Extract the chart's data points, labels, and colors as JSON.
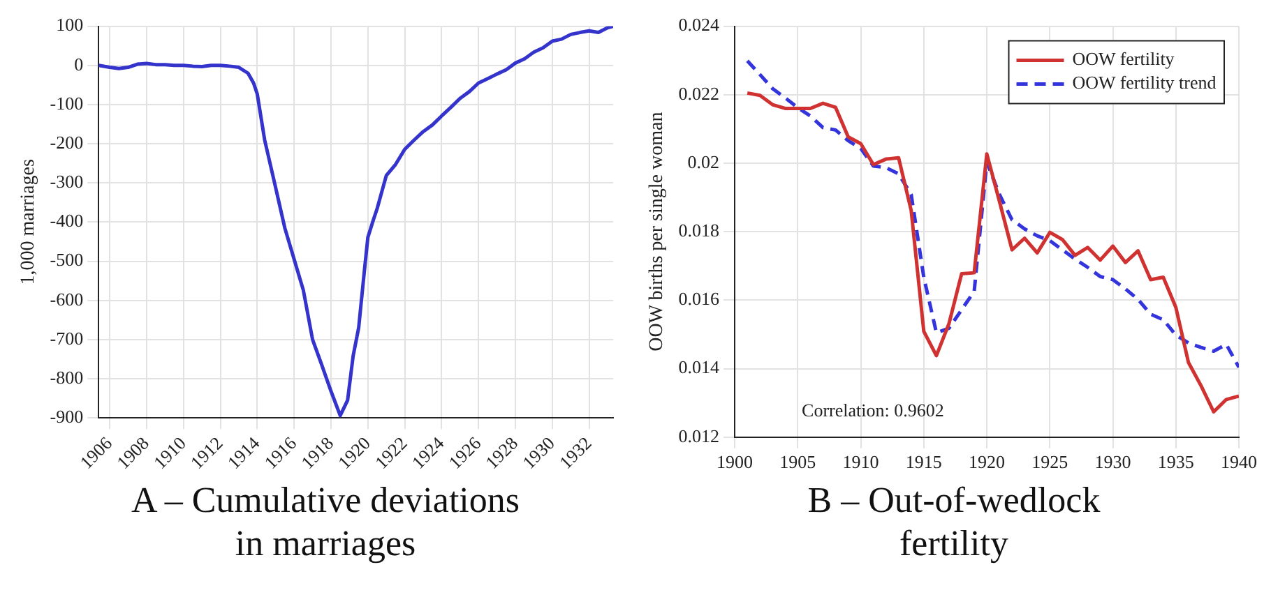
{
  "chart_data": [
    {
      "type": "line",
      "title": "A – Cumulative deviations in marriages",
      "ylabel": "1,000 marriages",
      "color": "#3434cc",
      "grid": true,
      "x": [
        1905.4,
        1906,
        1906.5,
        1907,
        1907.5,
        1908,
        1908.5,
        1909,
        1909.5,
        1910,
        1910.5,
        1911,
        1911.5,
        1912,
        1912.5,
        1913,
        1913.5,
        1913.8,
        1914,
        1914.4,
        1914.9,
        1915.5,
        1916,
        1916.5,
        1917,
        1917.5,
        1918,
        1918.5,
        1918.9,
        1919.2,
        1919.5,
        1919.8,
        1920,
        1920.3,
        1920.5,
        1920.8,
        1921,
        1921.5,
        1922,
        1922.5,
        1923,
        1923.5,
        1924,
        1924.5,
        1925,
        1925.5,
        1926,
        1926.5,
        1927,
        1927.5,
        1928,
        1928.5,
        1929,
        1929.5,
        1930,
        1930.5,
        1931,
        1931.5,
        1932,
        1932.5,
        1933,
        1933.3
      ],
      "values": [
        0,
        -5,
        -8,
        -5,
        3,
        5,
        2,
        2,
        0,
        0,
        -2,
        -3,
        0,
        0,
        -2,
        -5,
        -20,
        -45,
        -73,
        -190,
        -292,
        -416,
        -495,
        -574,
        -700,
        -765,
        -832,
        -894,
        -855,
        -742,
        -670,
        -529,
        -439,
        -394,
        -366,
        -315,
        -281,
        -253,
        -214,
        -191,
        -169,
        -152,
        -129,
        -107,
        -84,
        -67,
        -45,
        -34,
        -22,
        -11,
        6,
        17,
        34,
        45,
        62,
        67,
        79,
        84,
        88,
        84,
        96,
        100
      ],
      "xlim": [
        1905.4,
        1933.3
      ],
      "ylim": [
        -900,
        100
      ],
      "xticks": [
        1906,
        1908,
        1910,
        1912,
        1914,
        1916,
        1918,
        1920,
        1922,
        1924,
        1926,
        1928,
        1930,
        1932
      ],
      "yticks": [
        -900,
        -800,
        -700,
        -600,
        -500,
        -400,
        -300,
        -200,
        -100,
        0,
        100
      ]
    },
    {
      "type": "line",
      "title": "B – Out-of-wedlock fertility",
      "ylabel": "OOW births per single woman",
      "grid": true,
      "legend": "top right",
      "annotations": [
        "Correlation: 0.9602"
      ],
      "x": [
        1901,
        1902,
        1903,
        1904,
        1905,
        1906,
        1907,
        1908,
        1909,
        1910,
        1911,
        1912,
        1913,
        1914,
        1915,
        1916,
        1917,
        1918,
        1919,
        1920,
        1921,
        1922,
        1923,
        1924,
        1925,
        1926,
        1927,
        1928,
        1929,
        1930,
        1931,
        1932,
        1933,
        1934,
        1935,
        1936,
        1937,
        1938,
        1939,
        1940
      ],
      "series": [
        {
          "name": "OOW fertility",
          "color": "#d03232",
          "line_style": "solid",
          "values": [
            0.02205,
            0.02198,
            0.02171,
            0.0216,
            0.0216,
            0.0216,
            0.02175,
            0.02163,
            0.02077,
            0.02057,
            0.01996,
            0.02012,
            0.02016,
            0.01862,
            0.01509,
            0.01438,
            0.01532,
            0.01677,
            0.0168,
            0.02027,
            0.01889,
            0.01747,
            0.01781,
            0.01738,
            0.01798,
            0.01777,
            0.01731,
            0.01754,
            0.01717,
            0.01758,
            0.0171,
            0.01744,
            0.0166,
            0.01667,
            0.01579,
            0.01418,
            0.0135,
            0.01274,
            0.0131,
            0.0132
          ]
        },
        {
          "name": "OOW fertility trend",
          "color": "#3434dd",
          "line_style": "dashed",
          "values": [
            0.02299,
            0.02259,
            0.02218,
            0.02191,
            0.02162,
            0.02138,
            0.02104,
            0.02097,
            0.02066,
            0.02043,
            0.01992,
            0.01987,
            0.01969,
            0.01909,
            0.01667,
            0.01505,
            0.01518,
            0.01572,
            0.01626,
            0.02003,
            0.01909,
            0.01835,
            0.01808,
            0.01788,
            0.01774,
            0.01747,
            0.0172,
            0.01696,
            0.01669,
            0.0166,
            0.01633,
            0.01602,
            0.01559,
            0.01543,
            0.01498,
            0.01475,
            0.01462,
            0.01451,
            0.01471,
            0.01404
          ]
        }
      ],
      "xlim": [
        1900,
        1940
      ],
      "ylim": [
        0.012,
        0.024
      ],
      "xticks": [
        1900,
        1905,
        1910,
        1915,
        1920,
        1925,
        1930,
        1935,
        1940
      ],
      "yticks": [
        0.012,
        0.014,
        0.016,
        0.018,
        0.02,
        0.022,
        0.024
      ]
    }
  ]
}
